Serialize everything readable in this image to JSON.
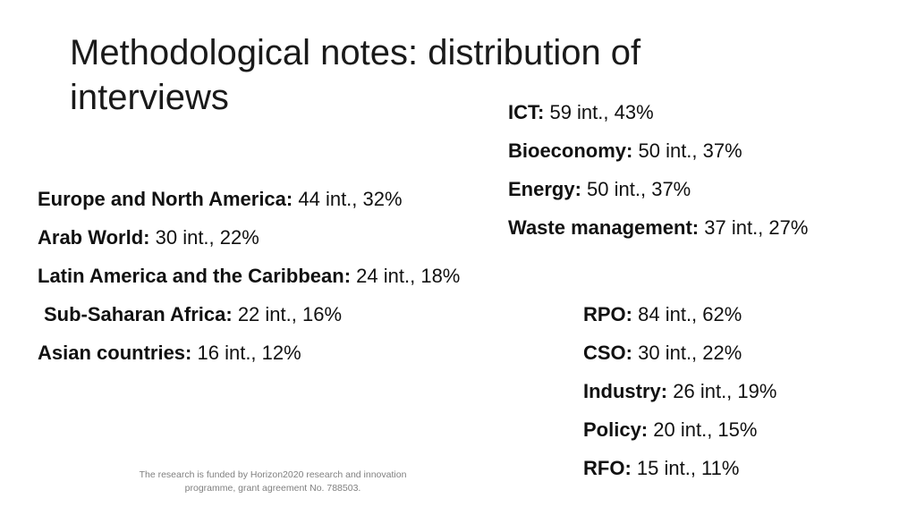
{
  "title": "Methodological notes: distribution of interviews",
  "regions": [
    {
      "label": "Europe and North America:",
      "value": "44 int., 32%"
    },
    {
      "label": "Arab World:",
      "value": "30 int., 22%"
    },
    {
      "label": "Latin America and the Caribbean:",
      "value": "24 int., 18%"
    },
    {
      "label": "Sub-Saharan Africa:",
      "value": "22 int., 16%"
    },
    {
      "label": "Asian countries:",
      "value": "16 int., 12%"
    }
  ],
  "sectors": [
    {
      "label": "ICT:",
      "value": "59 int., 43%"
    },
    {
      "label": "Bioeconomy:",
      "value": "50 int., 37%"
    },
    {
      "label": "Energy:",
      "value": "50 int., 37%"
    },
    {
      "label": "Waste management:",
      "value": "37 int., 27%"
    }
  ],
  "actors": [
    {
      "label": "RPO:",
      "value": "84 int., 62%"
    },
    {
      "label": "CSO:",
      "value": "30 int., 22%"
    },
    {
      "label": "Industry:",
      "value": "26 int., 19%"
    },
    {
      "label": "Policy:",
      "value": "20 int., 15%"
    },
    {
      "label": "RFO:",
      "value": "15 int., 11%"
    }
  ],
  "footnote": "The research is funded by Horizon2020 research and innovation programme, grant agreement No. 788503."
}
